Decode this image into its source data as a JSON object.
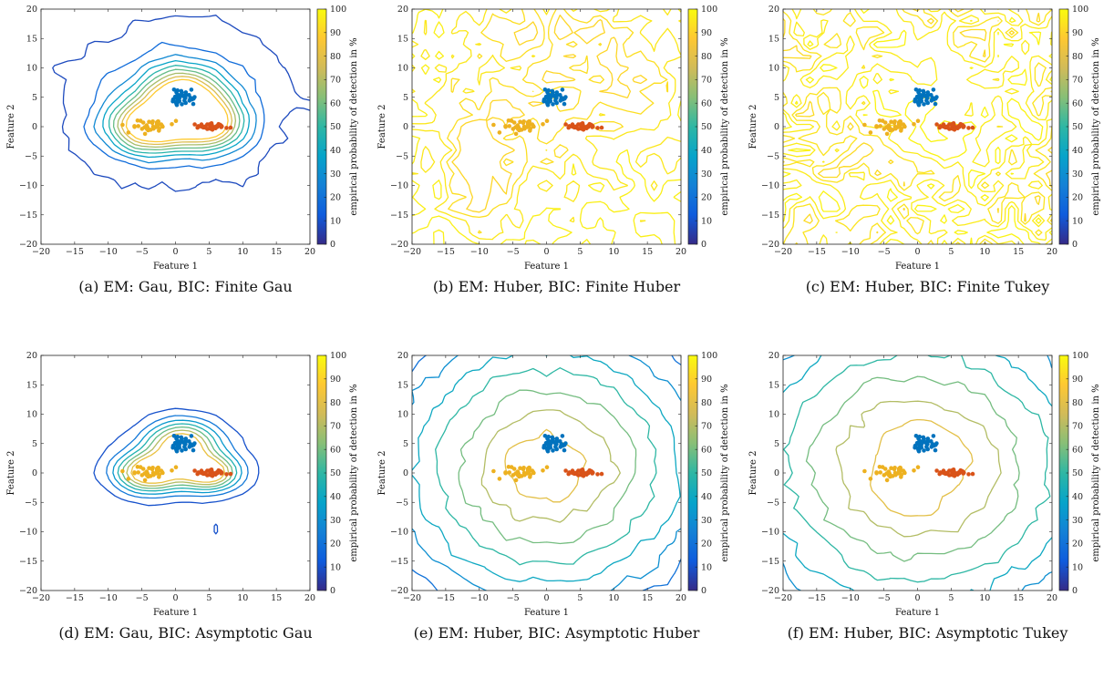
{
  "figure": {
    "panels": [
      {
        "id": "(a)",
        "caption": "EM: Gau, BIC: Finite Gau",
        "variant": "finite_gau"
      },
      {
        "id": "(b)",
        "caption": "EM: Huber, BIC: Finite Huber",
        "variant": "finite_huber"
      },
      {
        "id": "(c)",
        "caption": "EM: Huber, BIC: Finite Tukey",
        "variant": "finite_tukey"
      },
      {
        "id": "(d)",
        "caption": "EM: Gau, BIC: Asymptotic Gau",
        "variant": "asym_gau"
      },
      {
        "id": "(e)",
        "caption": "EM: Huber, BIC: Asymptotic Huber",
        "variant": "asym_huber"
      },
      {
        "id": "(f)",
        "caption": "EM: Huber, BIC: Asymptotic Tukey",
        "variant": "asym_tukey"
      }
    ]
  },
  "chart_data": {
    "type": "contour",
    "xlabel": "Feature 1",
    "ylabel": "Feature 2",
    "colorbar_label": "empirical probability of detection in %",
    "xlim": [
      -20,
      20
    ],
    "ylim": [
      -20,
      20
    ],
    "xticks": [
      -20,
      -15,
      -10,
      -5,
      0,
      5,
      10,
      15,
      20
    ],
    "yticks": [
      -20,
      -15,
      -10,
      -5,
      0,
      5,
      10,
      15,
      20
    ],
    "colorbar_range": [
      0,
      100
    ],
    "colorbar_ticks": [
      0,
      10,
      20,
      30,
      40,
      50,
      60,
      70,
      80,
      90,
      100
    ],
    "colormap": [
      "#352a87",
      "#0f5cdd",
      "#1481d6",
      "#06a4ca",
      "#2eb7a4",
      "#87bf77",
      "#d1bb59",
      "#fec832",
      "#f9fb0e"
    ],
    "clusters": [
      {
        "color": "#0072bd",
        "center": [
          1,
          5
        ],
        "spread": [
          1.2,
          0.9
        ],
        "count": 40
      },
      {
        "color": "#edb120",
        "center": [
          -4,
          0
        ],
        "spread": [
          1.7,
          0.8
        ],
        "count": 40
      },
      {
        "color": "#d95319",
        "center": [
          5.5,
          0
        ],
        "spread": [
          1.1,
          0.35
        ],
        "count": 40
      }
    ]
  }
}
